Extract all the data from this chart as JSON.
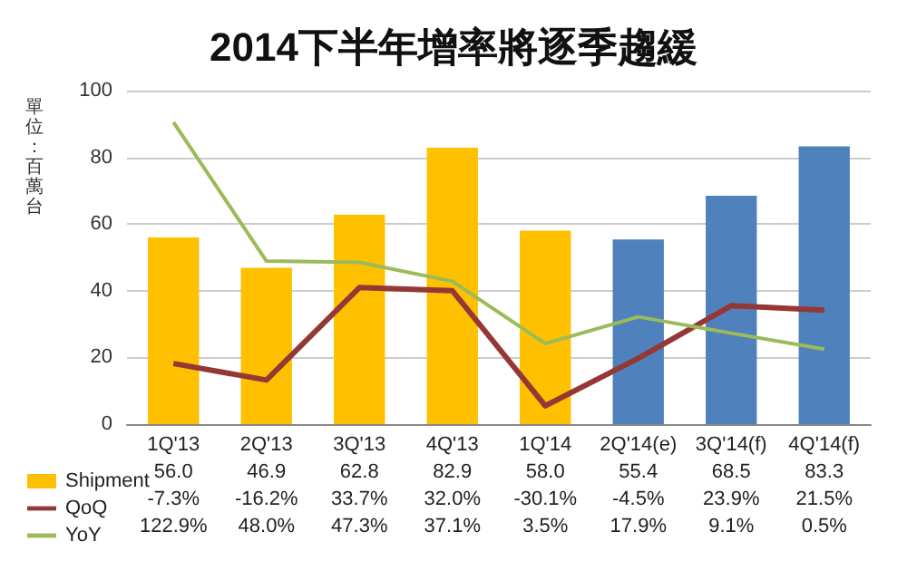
{
  "chart_data": {
    "type": "bar",
    "title": "2014下半年增率將逐季趨緩",
    "ylabel": "單位：百萬台",
    "categories": [
      "1Q'13",
      "2Q'13",
      "3Q'13",
      "4Q'13",
      "1Q'14",
      "2Q'14(e)",
      "3Q'14(f)",
      "4Q'14(f)"
    ],
    "series": [
      {
        "name": "Shipment",
        "color": "#ffc000",
        "colors": [
          "#ffc000",
          "#ffc000",
          "#ffc000",
          "#ffc000",
          "#ffc000",
          "#4f81bd",
          "#4f81bd",
          "#4f81bd"
        ],
        "values": [
          56.0,
          46.9,
          62.8,
          82.9,
          58.0,
          55.4,
          68.5,
          83.3
        ],
        "value_labels": [
          "56.0",
          "46.9",
          "62.8",
          "82.9",
          "58.0",
          "55.4",
          "68.5",
          "83.3"
        ]
      },
      {
        "name": "QoQ",
        "type": "line",
        "axis": "y2",
        "color": "#953735",
        "values": [
          -7.3,
          -16.2,
          33.7,
          32.0,
          -30.1,
          -4.5,
          23.9,
          21.5
        ],
        "value_labels": [
          "-7.3%",
          "-16.2%",
          "33.7%",
          "32.0%",
          "-30.1%",
          "-4.5%",
          "23.9%",
          "21.5%"
        ]
      },
      {
        "name": "YoY",
        "type": "line",
        "axis": "y2",
        "color": "#9bbb59",
        "values": [
          122.9,
          48.0,
          47.3,
          37.1,
          3.5,
          17.9,
          9.1,
          0.5
        ],
        "value_labels": [
          "122.9%",
          "48.0%",
          "47.3%",
          "37.1%",
          "3.5%",
          "17.9%",
          "9.1%",
          "0.5%"
        ]
      }
    ],
    "ylim": [
      0,
      100
    ],
    "yticks": [
      0,
      20,
      40,
      60,
      80,
      100
    ],
    "y2lim": [
      -40,
      140
    ],
    "grid": "y",
    "legend": "bottom left",
    "marker": "none"
  }
}
